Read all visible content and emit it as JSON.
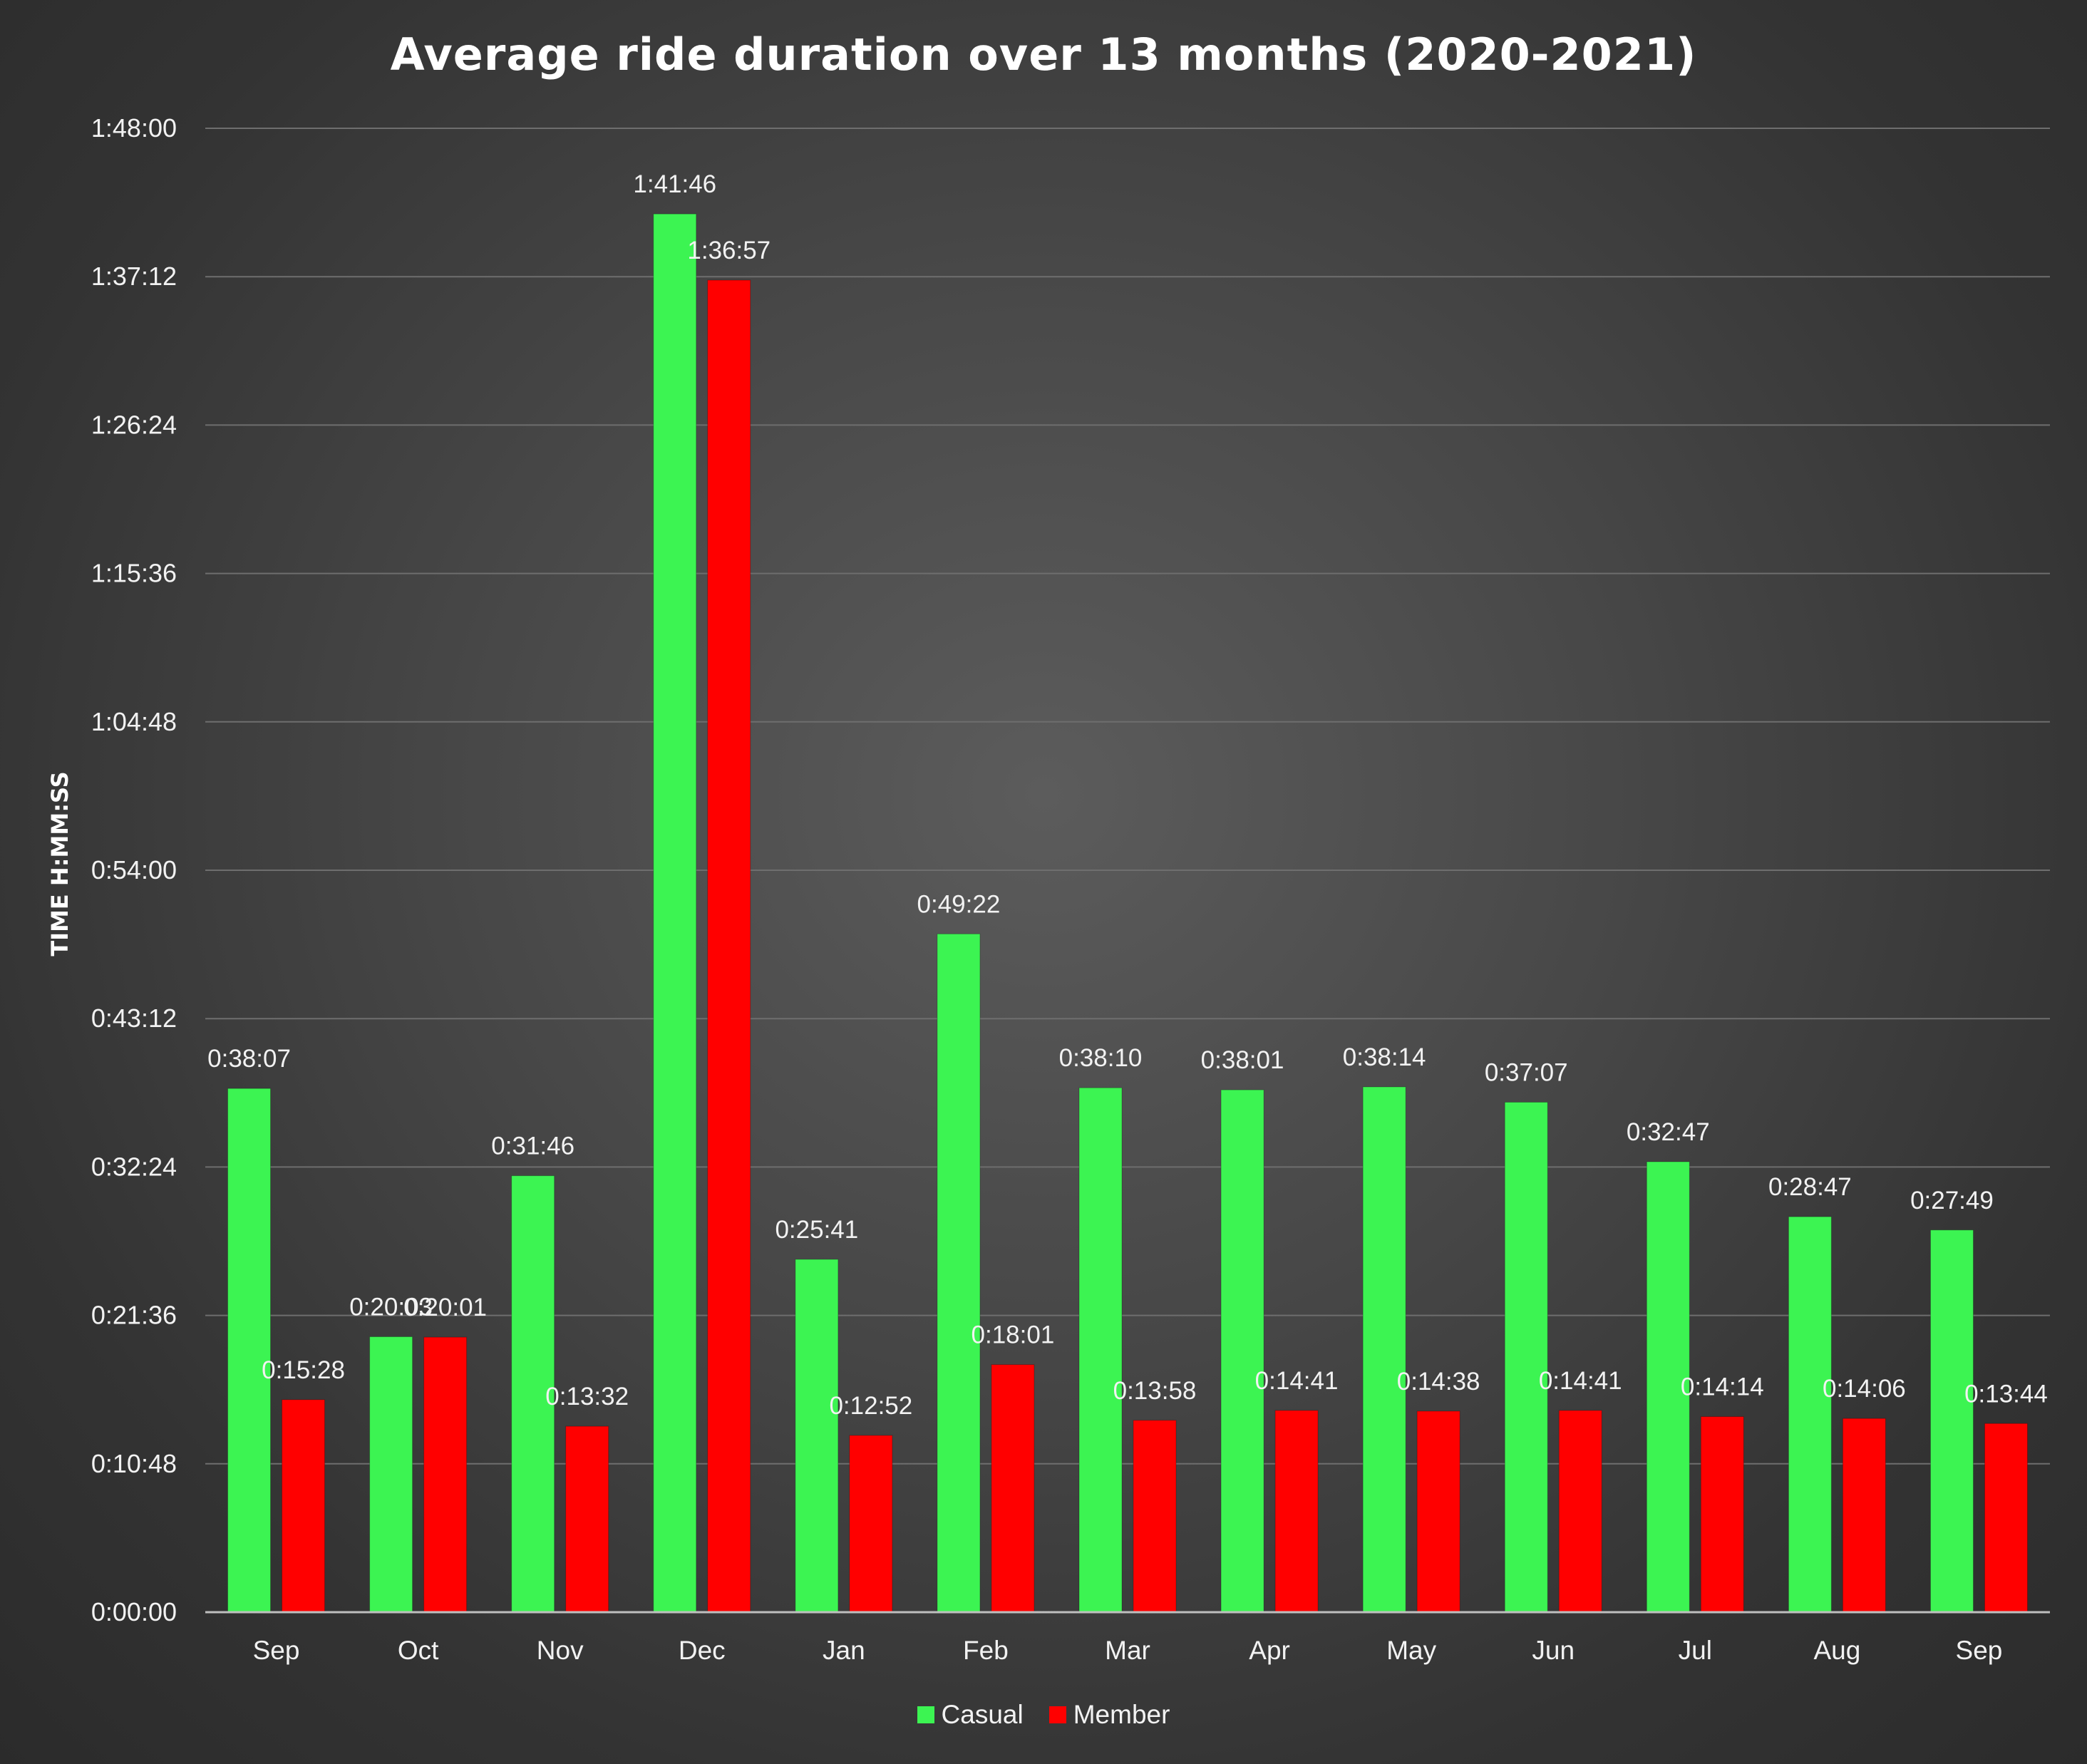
{
  "chart_data": {
    "type": "bar",
    "title": "Average ride duration over 13 months (2020-2021)",
    "ylabel": "TIME H:MM:SS",
    "xlabel": "",
    "categories": [
      "Sep",
      "Oct",
      "Nov",
      "Dec",
      "Jan",
      "Feb",
      "Mar",
      "Apr",
      "May",
      "Jun",
      "Jul",
      "Aug",
      "Sep"
    ],
    "series": [
      {
        "name": "Casual",
        "color": "#3cf452",
        "values": [
          "0:38:07",
          "0:20:03",
          "0:31:46",
          "1:41:46",
          "0:25:41",
          "0:49:22",
          "0:38:10",
          "0:38:01",
          "0:38:14",
          "0:37:07",
          "0:32:47",
          "0:28:47",
          "0:27:49"
        ]
      },
      {
        "name": "Member",
        "color": "#ff0000",
        "values": [
          "0:15:28",
          "0:20:01",
          "0:13:32",
          "1:36:57",
          "0:12:52",
          "0:18:01",
          "0:13:58",
          "0:14:41",
          "0:14:38",
          "0:14:41",
          "0:14:14",
          "0:14:06",
          "0:13:44"
        ]
      }
    ],
    "yticks": [
      "0:00:00",
      "0:10:48",
      "0:21:36",
      "0:32:24",
      "0:43:12",
      "0:54:00",
      "1:04:48",
      "1:15:36",
      "1:26:24",
      "1:37:12",
      "1:48:00"
    ],
    "ylim": [
      "0:00:00",
      "1:48:00"
    ],
    "grid": "horizontal",
    "legend_position": "bottom",
    "data_labels": true
  }
}
